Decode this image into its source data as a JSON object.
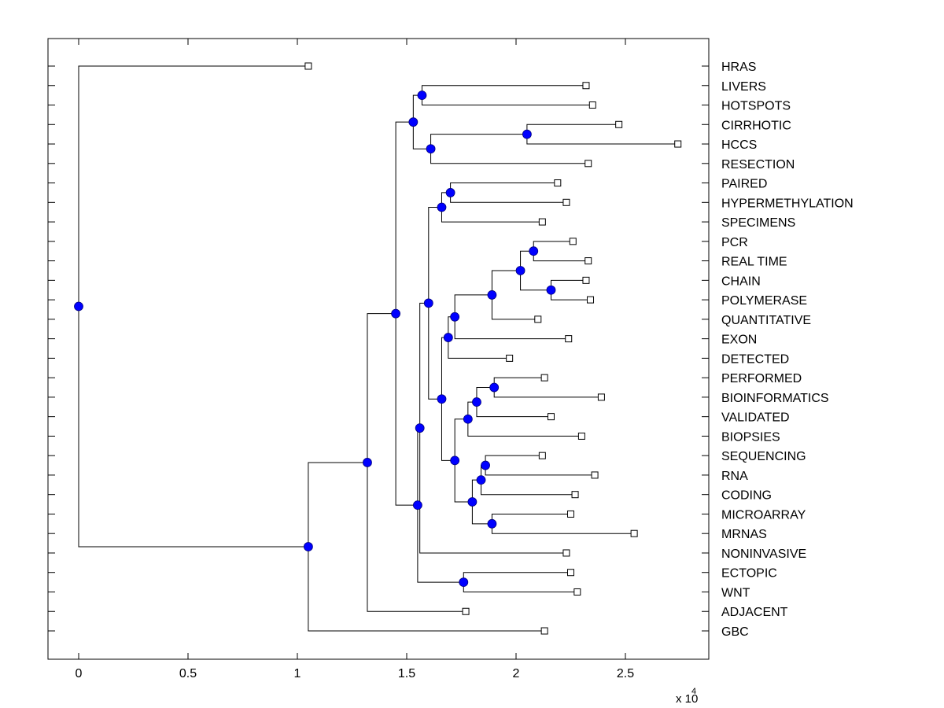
{
  "chart_data": {
    "type": "dendrogram",
    "title": "",
    "xlabel": "",
    "ylabel": "",
    "x_multiplier_label": "x 10",
    "x_multiplier_exponent": "4",
    "xlim": [
      -0.14,
      2.9
    ],
    "xticks": [
      0,
      0.5,
      1,
      1.5,
      2,
      2.5
    ],
    "xtick_labels": [
      "0",
      "0.5",
      "1",
      "1.5",
      "2",
      "2.5"
    ],
    "grid": false,
    "colors": {
      "node_fill": "#0000ff",
      "line": "#000000",
      "leaf_fill": "#ffffff"
    },
    "leaves": [
      {
        "label": "HRAS",
        "x": 1.05
      },
      {
        "label": "LIVERS",
        "x": 2.32
      },
      {
        "label": "HOTSPOTS",
        "x": 2.35
      },
      {
        "label": "CIRRHOTIC",
        "x": 2.47
      },
      {
        "label": "HCCS",
        "x": 2.74
      },
      {
        "label": "RESECTION",
        "x": 2.33
      },
      {
        "label": "PAIRED",
        "x": 2.19
      },
      {
        "label": "HYPERMETHYLATION",
        "x": 2.23
      },
      {
        "label": "SPECIMENS",
        "x": 2.12
      },
      {
        "label": "PCR",
        "x": 2.26
      },
      {
        "label": "REAL TIME",
        "x": 2.33
      },
      {
        "label": "CHAIN",
        "x": 2.32
      },
      {
        "label": "POLYMERASE",
        "x": 2.34
      },
      {
        "label": "QUANTITATIVE",
        "x": 2.1
      },
      {
        "label": "EXON",
        "x": 2.24
      },
      {
        "label": "DETECTED",
        "x": 1.97
      },
      {
        "label": "PERFORMED",
        "x": 2.13
      },
      {
        "label": "BIOINFORMATICS",
        "x": 2.39
      },
      {
        "label": "VALIDATED",
        "x": 2.16
      },
      {
        "label": "BIOPSIES",
        "x": 2.3
      },
      {
        "label": "SEQUENCING",
        "x": 2.12
      },
      {
        "label": "RNA",
        "x": 2.36
      },
      {
        "label": "CODING",
        "x": 2.27
      },
      {
        "label": "MICROARRAY",
        "x": 2.25
      },
      {
        "label": "MRNAS",
        "x": 2.54
      },
      {
        "label": "NONINVASIVE",
        "x": 2.23
      },
      {
        "label": "ECTOPIC",
        "x": 2.25
      },
      {
        "label": "WNT",
        "x": 2.28
      },
      {
        "label": "ADJACENT",
        "x": 1.77
      },
      {
        "label": "GBC",
        "x": 2.13
      }
    ],
    "nodes": [
      {
        "id": "n_livers_hotspots",
        "x": 1.57,
        "children": [
          "L1",
          "L2"
        ]
      },
      {
        "id": "n_cirr_hccs",
        "x": 2.05,
        "children": [
          "L3",
          "L4"
        ]
      },
      {
        "id": "n_cirr_res",
        "x": 1.61,
        "children": [
          "n_cirr_hccs",
          "L5"
        ]
      },
      {
        "id": "n_top",
        "x": 1.53,
        "children": [
          "n_livers_hotspots",
          "n_cirr_res"
        ]
      },
      {
        "id": "n_paired_hyper",
        "x": 1.7,
        "children": [
          "L6",
          "L7"
        ]
      },
      {
        "id": "n_paired_spec",
        "x": 1.66,
        "children": [
          "n_paired_hyper",
          "L8"
        ]
      },
      {
        "id": "n_pcr_rt",
        "x": 2.08,
        "children": [
          "L9",
          "L10"
        ]
      },
      {
        "id": "n_chain_poly",
        "x": 2.16,
        "children": [
          "L11",
          "L12"
        ]
      },
      {
        "id": "n_pcr_poly",
        "x": 2.02,
        "children": [
          "n_pcr_rt",
          "n_chain_poly"
        ]
      },
      {
        "id": "n_pcr_quant",
        "x": 1.89,
        "children": [
          "n_pcr_poly",
          "L13"
        ]
      },
      {
        "id": "n_pcr_exon",
        "x": 1.72,
        "children": [
          "n_pcr_quant",
          "L14"
        ]
      },
      {
        "id": "n_pcr_det",
        "x": 1.69,
        "children": [
          "n_pcr_exon",
          "L15"
        ]
      },
      {
        "id": "n_perf_bio",
        "x": 1.9,
        "children": [
          "L16",
          "L17"
        ]
      },
      {
        "id": "n_perf_val",
        "x": 1.82,
        "children": [
          "n_perf_bio",
          "L18"
        ]
      },
      {
        "id": "n_perf_biop",
        "x": 1.78,
        "children": [
          "n_perf_val",
          "L19"
        ]
      },
      {
        "id": "n_seq_rna",
        "x": 1.86,
        "children": [
          "L20",
          "L21"
        ]
      },
      {
        "id": "n_seq_cod",
        "x": 1.84,
        "children": [
          "n_seq_rna",
          "L22"
        ]
      },
      {
        "id": "n_micro_mrnas",
        "x": 1.89,
        "children": [
          "L23",
          "L24"
        ]
      },
      {
        "id": "n_seq_mrnas",
        "x": 1.8,
        "children": [
          "n_seq_cod",
          "n_micro_mrnas"
        ]
      },
      {
        "id": "n_perf_mrnas",
        "x": 1.72,
        "children": [
          "n_perf_biop",
          "n_seq_mrnas"
        ]
      },
      {
        "id": "n_pcr_mrnas",
        "x": 1.66,
        "children": [
          "n_pcr_det",
          "n_perf_mrnas"
        ]
      },
      {
        "id": "n_paired_mrnas",
        "x": 1.6,
        "children": [
          "n_paired_spec",
          "n_pcr_mrnas"
        ]
      },
      {
        "id": "n_paired_noninv",
        "x": 1.56,
        "children": [
          "n_paired_mrnas",
          "L25"
        ]
      },
      {
        "id": "n_ect_wnt",
        "x": 1.76,
        "children": [
          "L26",
          "L27"
        ]
      },
      {
        "id": "n_paired_wnt",
        "x": 1.55,
        "children": [
          "n_paired_noninv",
          "n_ect_wnt"
        ]
      },
      {
        "id": "n_upper",
        "x": 1.45,
        "children": [
          "n_top",
          "n_paired_wnt"
        ]
      },
      {
        "id": "n_upper_adj",
        "x": 1.32,
        "children": [
          "n_upper",
          "L28"
        ]
      },
      {
        "id": "n_upper_gbc",
        "x": 1.05,
        "children": [
          "n_upper_adj",
          "L29"
        ]
      },
      {
        "id": "n_root",
        "x": 0.0,
        "children": [
          "L0",
          "n_upper_gbc"
        ]
      }
    ]
  }
}
